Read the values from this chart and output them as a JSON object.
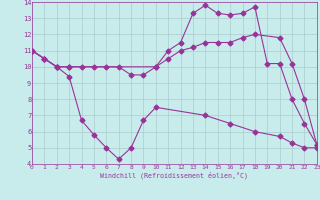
{
  "xlabel": "Windchill (Refroidissement éolien,°C)",
  "bg_color": "#c8ecec",
  "line_color": "#993399",
  "grid_color": "#aacccc",
  "xmin": 0,
  "xmax": 23,
  "ymin": 4,
  "ymax": 14,
  "line1_x": [
    0,
    1,
    2,
    3,
    4,
    5,
    6,
    7,
    8,
    9,
    10,
    11,
    12,
    13,
    14,
    15,
    16,
    17,
    18,
    19,
    20,
    21,
    22,
    23
  ],
  "line1_y": [
    11.0,
    10.5,
    10.0,
    10.0,
    10.0,
    10.0,
    10.0,
    10.0,
    9.5,
    9.5,
    10.0,
    11.0,
    11.5,
    13.3,
    13.8,
    13.3,
    13.2,
    13.3,
    13.7,
    10.2,
    10.2,
    8.0,
    6.5,
    5.2
  ],
  "line2_x": [
    0,
    1,
    2,
    3,
    10,
    11,
    12,
    13,
    14,
    15,
    16,
    17,
    18,
    20,
    21,
    22,
    23
  ],
  "line2_y": [
    11.0,
    10.5,
    10.0,
    10.0,
    10.0,
    10.5,
    11.0,
    11.2,
    11.5,
    11.5,
    11.5,
    11.8,
    12.0,
    11.8,
    10.2,
    8.0,
    5.2
  ],
  "line3_x": [
    0,
    1,
    2,
    3,
    4,
    5,
    6,
    7,
    8,
    9,
    10,
    14,
    16,
    18,
    20,
    21,
    22,
    23
  ],
  "line3_y": [
    11.0,
    10.5,
    10.0,
    9.4,
    6.7,
    5.8,
    5.0,
    4.3,
    5.0,
    6.7,
    7.5,
    7.0,
    6.5,
    6.0,
    5.7,
    5.3,
    5.0,
    5.0
  ]
}
